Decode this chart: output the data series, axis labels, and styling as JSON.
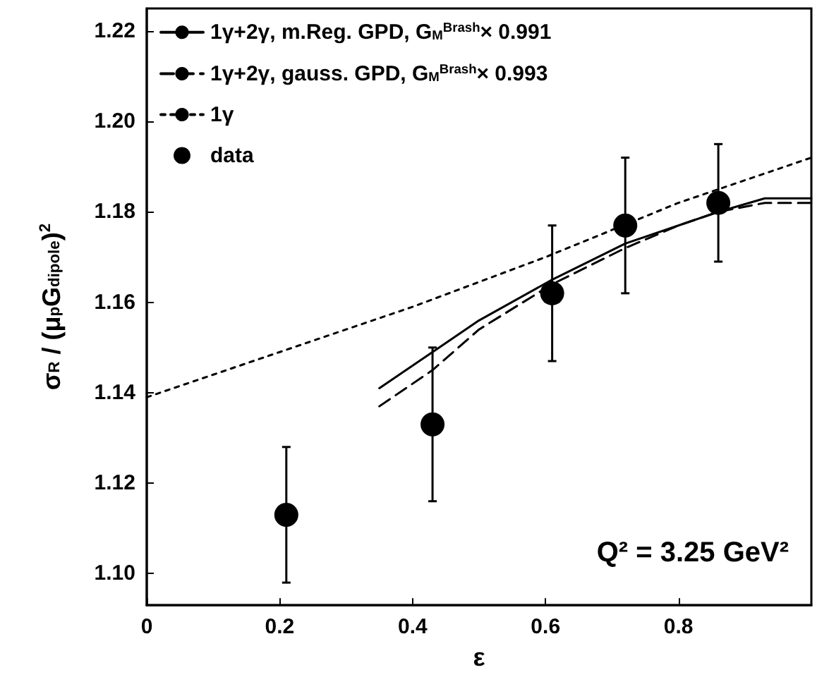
{
  "chart_data": {
    "type": "line",
    "xlabel": "ε",
    "ylabel": "σ$_{R}$ / (μ$_{p}$G$_{dipole}$)$^{2}$",
    "annotations": [
      "Q² = 3.25 GeV²"
    ],
    "xlim": [
      0,
      1
    ],
    "xticks": [
      0,
      0.2,
      0.4,
      0.6,
      0.8
    ],
    "ylim": [
      1.093,
      1.225
    ],
    "yticks": [
      {
        "value": 1.1,
        "label": "1.10"
      },
      {
        "value": 1.12,
        "label": "1.12"
      },
      {
        "value": 1.14,
        "label": "1.14"
      },
      {
        "value": 1.16,
        "label": "1.16"
      },
      {
        "value": 1.18,
        "label": "1.18"
      },
      {
        "value": 1.2,
        "label": "1.20"
      },
      {
        "value": 1.22,
        "label": "1.22"
      }
    ],
    "legend": "top left",
    "grid": false,
    "series": [
      {
        "name": "1γ+2γ, m.Reg. GPD, G$_{M}$$^{Brash}$× 0.991",
        "color": "#000000",
        "line_style": "solid",
        "marker": "none",
        "x": [
          0.35,
          0.43,
          0.5,
          0.61,
          0.72,
          0.8,
          0.86,
          0.93,
          1.0
        ],
        "values": [
          1.141,
          1.149,
          1.156,
          1.165,
          1.173,
          1.177,
          1.18,
          1.183,
          1.183
        ]
      },
      {
        "name": "1γ+2γ, gauss. GPD, G$_{M}$$^{Brash}$× 0.993",
        "color": "#000000",
        "line_style": "dashed",
        "marker": "none",
        "x": [
          0.35,
          0.43,
          0.5,
          0.61,
          0.72,
          0.8,
          0.86,
          0.93,
          1.0
        ],
        "values": [
          1.137,
          1.145,
          1.154,
          1.164,
          1.172,
          1.177,
          1.18,
          1.182,
          1.182
        ]
      },
      {
        "name": "1γ",
        "color": "#000000",
        "line_style": "dotted",
        "marker": "none",
        "x": [
          0,
          0.2,
          0.4,
          0.6,
          0.8,
          1.0
        ],
        "values": [
          1.139,
          1.149,
          1.159,
          1.17,
          1.182,
          1.192
        ]
      },
      {
        "name": "data",
        "color": "#000000",
        "type": "scatter",
        "marker": "circle",
        "x": [
          0.21,
          0.43,
          0.61,
          0.72,
          0.86
        ],
        "values": [
          1.113,
          1.133,
          1.162,
          1.177,
          1.182
        ],
        "errors": [
          [
            1.098,
            1.128
          ],
          [
            1.116,
            1.15
          ],
          [
            1.147,
            1.177
          ],
          [
            1.162,
            1.192
          ],
          [
            1.169,
            1.195
          ]
        ]
      }
    ]
  }
}
